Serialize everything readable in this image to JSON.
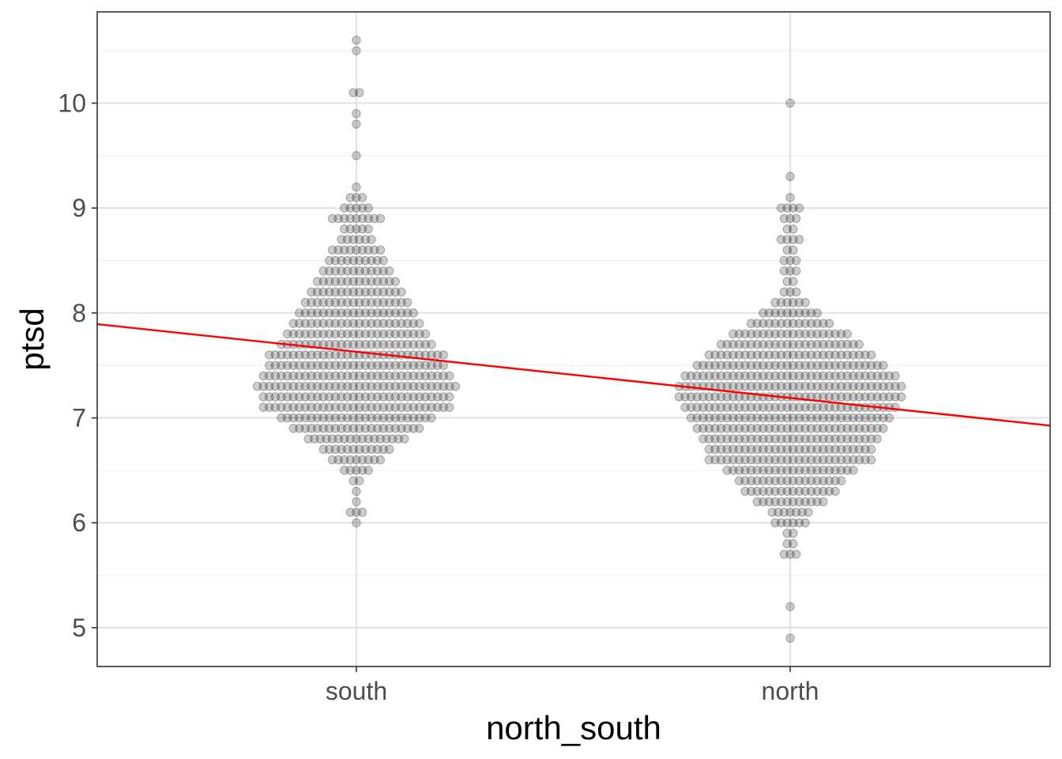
{
  "chart_data": {
    "type": "scatter",
    "subtype": "beeswarm",
    "title": "",
    "xlabel": "north_south",
    "ylabel": "ptsd",
    "categories": [
      "south",
      "north"
    ],
    "ylim": [
      4.63,
      10.87
    ],
    "y_ticks": [
      5,
      6,
      7,
      8,
      9,
      10
    ],
    "y_tick_labels": [
      "5",
      "6",
      "7",
      "8",
      "9",
      "10"
    ],
    "grid": true,
    "theme": "bw",
    "point_color": "#000000",
    "point_opacity": 0.2,
    "line_color": "#ff0000",
    "regression_line": {
      "intercept": 7.63,
      "slope": -0.44
    },
    "series": [
      {
        "category": "south",
        "distribution": [
          [
            6.0,
            1
          ],
          [
            6.1,
            3
          ],
          [
            6.2,
            1
          ],
          [
            6.3,
            1
          ],
          [
            6.4,
            2
          ],
          [
            6.5,
            5
          ],
          [
            6.6,
            9
          ],
          [
            6.7,
            12
          ],
          [
            6.8,
            17
          ],
          [
            6.9,
            22
          ],
          [
            7.0,
            26
          ],
          [
            7.1,
            32
          ],
          [
            7.2,
            32
          ],
          [
            7.3,
            34
          ],
          [
            7.4,
            32
          ],
          [
            7.5,
            30
          ],
          [
            7.6,
            30
          ],
          [
            7.7,
            26
          ],
          [
            7.8,
            24
          ],
          [
            7.9,
            22
          ],
          [
            8.0,
            20
          ],
          [
            8.1,
            18
          ],
          [
            8.2,
            16
          ],
          [
            8.3,
            14
          ],
          [
            8.4,
            12
          ],
          [
            8.5,
            10
          ],
          [
            8.6,
            9
          ],
          [
            8.7,
            6
          ],
          [
            8.8,
            5
          ],
          [
            8.9,
            9
          ],
          [
            9.0,
            5
          ],
          [
            9.1,
            3
          ],
          [
            9.2,
            1
          ],
          [
            9.5,
            1
          ],
          [
            9.8,
            1
          ],
          [
            9.9,
            1
          ],
          [
            10.1,
            2
          ],
          [
            10.5,
            1
          ],
          [
            10.6,
            1
          ]
        ]
      },
      {
        "category": "north",
        "distribution": [
          [
            4.9,
            1
          ],
          [
            5.2,
            1
          ],
          [
            5.7,
            3
          ],
          [
            5.8,
            2
          ],
          [
            5.9,
            2
          ],
          [
            6.0,
            6
          ],
          [
            6.1,
            7
          ],
          [
            6.2,
            12
          ],
          [
            6.3,
            16
          ],
          [
            6.4,
            18
          ],
          [
            6.5,
            22
          ],
          [
            6.6,
            28
          ],
          [
            6.7,
            28
          ],
          [
            6.8,
            30
          ],
          [
            6.9,
            32
          ],
          [
            7.0,
            34
          ],
          [
            7.1,
            36
          ],
          [
            7.2,
            38
          ],
          [
            7.3,
            38
          ],
          [
            7.4,
            36
          ],
          [
            7.5,
            32
          ],
          [
            7.6,
            28
          ],
          [
            7.7,
            24
          ],
          [
            7.8,
            20
          ],
          [
            7.9,
            14
          ],
          [
            8.0,
            10
          ],
          [
            8.1,
            6
          ],
          [
            8.2,
            3
          ],
          [
            8.3,
            2
          ],
          [
            8.4,
            3
          ],
          [
            8.5,
            3
          ],
          [
            8.6,
            2
          ],
          [
            8.7,
            4
          ],
          [
            8.8,
            2
          ],
          [
            8.9,
            3
          ],
          [
            9.0,
            4
          ],
          [
            9.1,
            1
          ],
          [
            9.3,
            1
          ],
          [
            10.0,
            1
          ]
        ]
      }
    ]
  }
}
